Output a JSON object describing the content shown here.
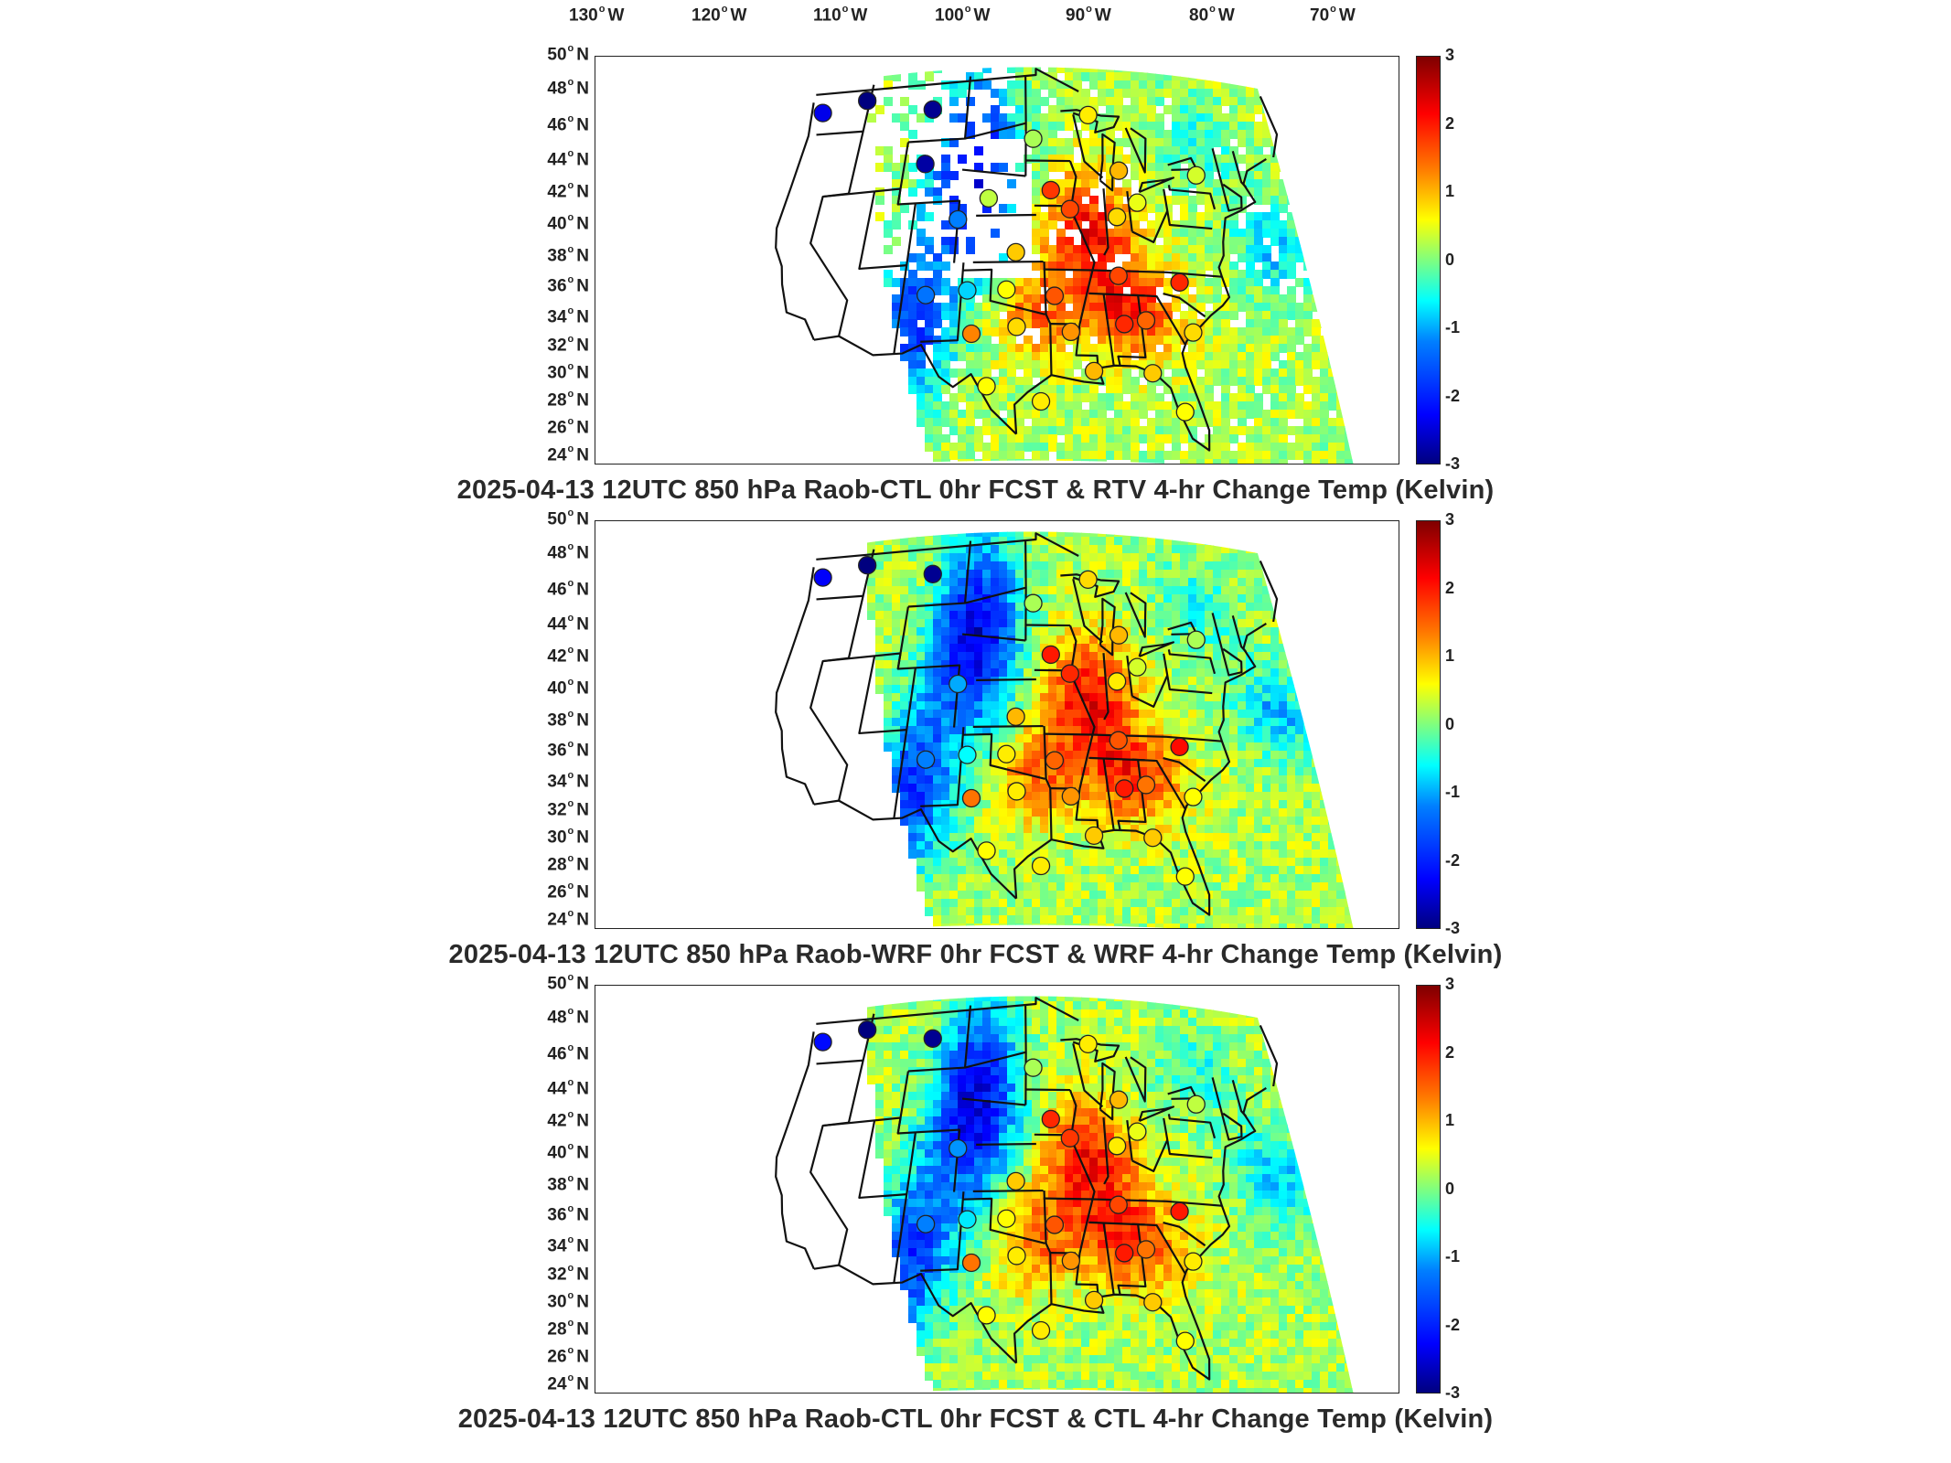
{
  "longitude_labels": [
    "130",
    "120",
    "110",
    "100",
    "90",
    "80",
    "70"
  ],
  "longitude_suffix": "W",
  "latitude_labels": [
    "50",
    "48",
    "46",
    "44",
    "42",
    "40",
    "38",
    "36",
    "34",
    "32",
    "30",
    "28",
    "26",
    "24"
  ],
  "latitude_suffix": "N",
  "colorbar": {
    "ticks": [
      "3",
      "2",
      "1",
      "0",
      "-1",
      "-2",
      "-3"
    ],
    "range": [
      -3,
      3
    ],
    "colormap": [
      "#00007f",
      "#0000ff",
      "#007fff",
      "#00ffff",
      "#7fff7f",
      "#ffff00",
      "#ff7f00",
      "#ff0000",
      "#7f0000"
    ]
  },
  "panels": [
    {
      "title": "2025-04-13 12UTC 850 hPa Raob-CTL 0hr FCST & RTV 4-hr Change Temp (Kelvin)",
      "field_pattern": "sparse-retrieval",
      "stations": [
        {
          "lon": -123.0,
          "lat": 47.6,
          "value": -2.4
        },
        {
          "lon": -117.4,
          "lat": 48.0,
          "value": -3.0
        },
        {
          "lon": -108.5,
          "lat": 47.0,
          "value": -2.9
        },
        {
          "lon": -108.5,
          "lat": 43.5,
          "value": -2.8
        },
        {
          "lon": -104.0,
          "lat": 39.8,
          "value": -1.2
        },
        {
          "lon": -100.7,
          "lat": 41.1,
          "value": 0.3
        },
        {
          "lon": -95.6,
          "lat": 44.9,
          "value": 0.2
        },
        {
          "lon": -88.6,
          "lat": 46.5,
          "value": 0.7
        },
        {
          "lon": -85.5,
          "lat": 43.0,
          "value": 1.0
        },
        {
          "lon": -93.6,
          "lat": 41.6,
          "value": 1.8
        },
        {
          "lon": -91.5,
          "lat": 40.4,
          "value": 1.7
        },
        {
          "lon": -86.3,
          "lat": 40.0,
          "value": 0.8
        },
        {
          "lon": -83.8,
          "lat": 41.0,
          "value": 0.5
        },
        {
          "lon": -76.3,
          "lat": 43.1,
          "value": 0.4
        },
        {
          "lon": -97.5,
          "lat": 37.6,
          "value": 0.9
        },
        {
          "lon": -106.6,
          "lat": 35.0,
          "value": -1.3
        },
        {
          "lon": -102.4,
          "lat": 35.2,
          "value": -0.8
        },
        {
          "lon": -98.4,
          "lat": 35.2,
          "value": 0.6
        },
        {
          "lon": -93.5,
          "lat": 34.8,
          "value": 1.6
        },
        {
          "lon": -86.8,
          "lat": 36.2,
          "value": 1.7
        },
        {
          "lon": -80.5,
          "lat": 36.0,
          "value": 1.9
        },
        {
          "lon": -101.7,
          "lat": 32.4,
          "value": 1.3
        },
        {
          "lon": -97.3,
          "lat": 32.8,
          "value": 0.8
        },
        {
          "lon": -92.0,
          "lat": 32.5,
          "value": 1.2
        },
        {
          "lon": -86.7,
          "lat": 33.1,
          "value": 1.9
        },
        {
          "lon": -84.5,
          "lat": 33.4,
          "value": 1.5
        },
        {
          "lon": -80.0,
          "lat": 32.8,
          "value": 0.8
        },
        {
          "lon": -100.0,
          "lat": 29.0,
          "value": 0.6
        },
        {
          "lon": -95.0,
          "lat": 28.0,
          "value": 0.7
        },
        {
          "lon": -90.0,
          "lat": 30.0,
          "value": 1.0
        },
        {
          "lon": -84.5,
          "lat": 30.0,
          "value": 0.9
        },
        {
          "lon": -82.0,
          "lat": 27.6,
          "value": 0.6
        }
      ]
    },
    {
      "title": "2025-04-13 12UTC 850 hPa Raob-WRF 0hr FCST & WRF 4-hr Change Temp (Kelvin)",
      "field_pattern": "full-domain",
      "stations": [
        {
          "lon": -123.0,
          "lat": 47.6,
          "value": -2.3
        },
        {
          "lon": -117.4,
          "lat": 48.0,
          "value": -3.0
        },
        {
          "lon": -108.5,
          "lat": 47.0,
          "value": -2.9
        },
        {
          "lon": -104.0,
          "lat": 39.8,
          "value": -1.0
        },
        {
          "lon": -95.6,
          "lat": 44.9,
          "value": 0.2
        },
        {
          "lon": -88.6,
          "lat": 46.5,
          "value": 0.8
        },
        {
          "lon": -85.5,
          "lat": 43.0,
          "value": 1.0
        },
        {
          "lon": -93.6,
          "lat": 41.6,
          "value": 2.0
        },
        {
          "lon": -91.5,
          "lat": 40.4,
          "value": 1.9
        },
        {
          "lon": -86.3,
          "lat": 40.0,
          "value": 0.7
        },
        {
          "lon": -83.8,
          "lat": 41.0,
          "value": 0.4
        },
        {
          "lon": -76.3,
          "lat": 43.1,
          "value": 0.2
        },
        {
          "lon": -97.5,
          "lat": 37.6,
          "value": 1.0
        },
        {
          "lon": -106.6,
          "lat": 35.0,
          "value": -1.2
        },
        {
          "lon": -102.4,
          "lat": 35.2,
          "value": -0.6
        },
        {
          "lon": -98.4,
          "lat": 35.2,
          "value": 0.7
        },
        {
          "lon": -93.5,
          "lat": 34.8,
          "value": 1.5
        },
        {
          "lon": -86.8,
          "lat": 36.2,
          "value": 1.6
        },
        {
          "lon": -80.5,
          "lat": 36.0,
          "value": 2.1
        },
        {
          "lon": -101.7,
          "lat": 32.4,
          "value": 1.4
        },
        {
          "lon": -97.3,
          "lat": 32.8,
          "value": 0.7
        },
        {
          "lon": -92.0,
          "lat": 32.5,
          "value": 1.2
        },
        {
          "lon": -86.7,
          "lat": 33.1,
          "value": 2.0
        },
        {
          "lon": -84.5,
          "lat": 33.4,
          "value": 1.4
        },
        {
          "lon": -80.0,
          "lat": 32.8,
          "value": 0.6
        },
        {
          "lon": -100.0,
          "lat": 29.0,
          "value": 0.6
        },
        {
          "lon": -95.0,
          "lat": 28.0,
          "value": 0.7
        },
        {
          "lon": -90.0,
          "lat": 30.0,
          "value": 0.9
        },
        {
          "lon": -84.5,
          "lat": 30.0,
          "value": 0.9
        },
        {
          "lon": -82.0,
          "lat": 27.6,
          "value": 0.6
        }
      ]
    },
    {
      "title": "2025-04-13 12UTC 850 hPa Raob-CTL 0hr FCST & CTL 4-hr Change Temp (Kelvin)",
      "field_pattern": "full-domain",
      "stations": [
        {
          "lon": -123.0,
          "lat": 47.6,
          "value": -2.2
        },
        {
          "lon": -117.4,
          "lat": 48.0,
          "value": -3.0
        },
        {
          "lon": -108.5,
          "lat": 47.0,
          "value": -2.9
        },
        {
          "lon": -104.0,
          "lat": 39.8,
          "value": -1.1
        },
        {
          "lon": -95.6,
          "lat": 44.9,
          "value": 0.2
        },
        {
          "lon": -88.6,
          "lat": 46.5,
          "value": 0.7
        },
        {
          "lon": -85.5,
          "lat": 43.0,
          "value": 1.0
        },
        {
          "lon": -93.6,
          "lat": 41.6,
          "value": 1.9
        },
        {
          "lon": -91.5,
          "lat": 40.4,
          "value": 1.8
        },
        {
          "lon": -86.3,
          "lat": 40.0,
          "value": 0.7
        },
        {
          "lon": -83.8,
          "lat": 41.0,
          "value": 0.5
        },
        {
          "lon": -76.3,
          "lat": 43.1,
          "value": 0.3
        },
        {
          "lon": -97.5,
          "lat": 37.6,
          "value": 0.9
        },
        {
          "lon": -106.6,
          "lat": 35.0,
          "value": -1.2
        },
        {
          "lon": -102.4,
          "lat": 35.2,
          "value": -0.7
        },
        {
          "lon": -98.4,
          "lat": 35.2,
          "value": 0.6
        },
        {
          "lon": -93.5,
          "lat": 34.8,
          "value": 1.6
        },
        {
          "lon": -86.8,
          "lat": 36.2,
          "value": 1.7
        },
        {
          "lon": -80.5,
          "lat": 36.0,
          "value": 2.0
        },
        {
          "lon": -101.7,
          "lat": 32.4,
          "value": 1.4
        },
        {
          "lon": -97.3,
          "lat": 32.8,
          "value": 0.7
        },
        {
          "lon": -92.0,
          "lat": 32.5,
          "value": 1.2
        },
        {
          "lon": -86.7,
          "lat": 33.1,
          "value": 2.0
        },
        {
          "lon": -84.5,
          "lat": 33.4,
          "value": 1.4
        },
        {
          "lon": -80.0,
          "lat": 32.8,
          "value": 0.7
        },
        {
          "lon": -100.0,
          "lat": 29.0,
          "value": 0.6
        },
        {
          "lon": -95.0,
          "lat": 28.0,
          "value": 0.7
        },
        {
          "lon": -90.0,
          "lat": 30.0,
          "value": 0.9
        },
        {
          "lon": -84.5,
          "lat": 30.0,
          "value": 0.9
        },
        {
          "lon": -82.0,
          "lat": 27.6,
          "value": 0.6
        }
      ]
    }
  ]
}
